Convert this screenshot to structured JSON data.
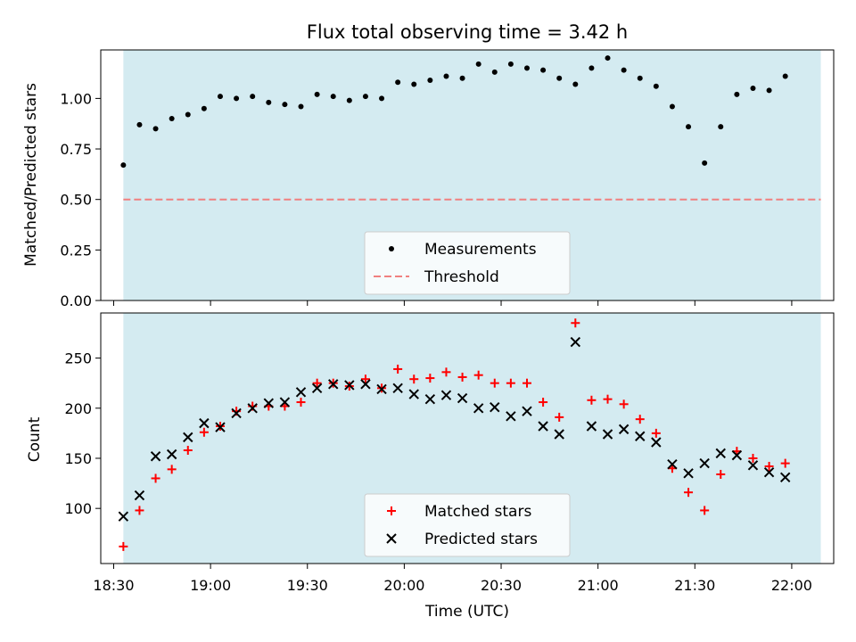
{
  "title": "Flux total observing time = 3.42 h",
  "chart_data": [
    {
      "type": "scatter",
      "ylabel": "Matched/Predicted stars",
      "ylim": [
        0,
        1.24
      ],
      "yticks": [
        0.0,
        0.25,
        0.5,
        0.75,
        1.0
      ],
      "ytick_labels": [
        "0.00",
        "0.25",
        "0.50",
        "0.75",
        "1.00"
      ],
      "shaded_span": [
        "18:33",
        "22:09"
      ],
      "shade_color": "#d4ebf1",
      "legend_position": "lower center",
      "series": [
        {
          "name": "Measurements",
          "marker": "dot",
          "color": "#000000",
          "x": [
            "18:33",
            "18:38",
            "18:43",
            "18:48",
            "18:53",
            "18:58",
            "19:03",
            "19:08",
            "19:13",
            "19:18",
            "19:23",
            "19:28",
            "19:33",
            "19:38",
            "19:43",
            "19:48",
            "19:53",
            "19:58",
            "20:03",
            "20:08",
            "20:13",
            "20:18",
            "20:23",
            "20:28",
            "20:33",
            "20:38",
            "20:43",
            "20:48",
            "20:53",
            "20:58",
            "21:03",
            "21:08",
            "21:13",
            "21:18",
            "21:23",
            "21:28",
            "21:33",
            "21:38",
            "21:43",
            "21:48",
            "21:53",
            "21:58"
          ],
          "y": [
            0.67,
            0.87,
            0.85,
            0.9,
            0.92,
            0.95,
            1.01,
            1.0,
            1.01,
            0.98,
            0.97,
            0.96,
            1.02,
            1.01,
            0.99,
            1.01,
            1.0,
            1.08,
            1.07,
            1.09,
            1.11,
            1.1,
            1.17,
            1.13,
            1.17,
            1.15,
            1.14,
            1.1,
            1.07,
            1.15,
            1.2,
            1.14,
            1.1,
            1.06,
            0.96,
            0.86,
            0.68,
            0.86,
            1.02,
            1.05,
            1.04,
            1.11
          ]
        },
        {
          "name": "Threshold",
          "marker": "dashed-line",
          "color": "#f08080",
          "x": [
            "18:33",
            "22:09"
          ],
          "y": [
            0.5,
            0.5
          ]
        }
      ]
    },
    {
      "type": "scatter",
      "xlabel": "Time (UTC)",
      "ylabel": "Count",
      "ylim": [
        45,
        295
      ],
      "yticks": [
        100,
        150,
        200,
        250
      ],
      "ytick_labels": [
        "100",
        "150",
        "200",
        "250"
      ],
      "xticks": [
        "18:30",
        "19:00",
        "19:30",
        "20:00",
        "20:30",
        "21:00",
        "21:30",
        "22:00"
      ],
      "shaded_span": [
        "18:33",
        "22:09"
      ],
      "shade_color": "#d4ebf1",
      "legend_position": "lower center",
      "series": [
        {
          "name": "Matched stars",
          "marker": "plus",
          "color": "#ff0000",
          "x": [
            "18:33",
            "18:38",
            "18:43",
            "18:48",
            "18:53",
            "18:58",
            "19:03",
            "19:08",
            "19:13",
            "19:18",
            "19:23",
            "19:28",
            "19:33",
            "19:38",
            "19:43",
            "19:48",
            "19:53",
            "19:58",
            "20:03",
            "20:08",
            "20:13",
            "20:18",
            "20:23",
            "20:28",
            "20:33",
            "20:38",
            "20:43",
            "20:48",
            "20:53",
            "20:58",
            "21:03",
            "21:08",
            "21:13",
            "21:18",
            "21:23",
            "21:28",
            "21:33",
            "21:38",
            "21:43",
            "21:48",
            "21:53",
            "21:58"
          ],
          "y": [
            62,
            98,
            130,
            139,
            158,
            176,
            182,
            197,
            202,
            202,
            202,
            206,
            225,
            225,
            222,
            229,
            220,
            239,
            229,
            230,
            236,
            231,
            233,
            225,
            225,
            225,
            206,
            191,
            285,
            208,
            209,
            204,
            189,
            175,
            140,
            116,
            98,
            134,
            157,
            150,
            142,
            145
          ]
        },
        {
          "name": "Predicted stars",
          "marker": "x",
          "color": "#000000",
          "x": [
            "18:33",
            "18:38",
            "18:43",
            "18:48",
            "18:53",
            "18:58",
            "19:03",
            "19:08",
            "19:13",
            "19:18",
            "19:23",
            "19:28",
            "19:33",
            "19:38",
            "19:43",
            "19:48",
            "19:53",
            "19:58",
            "20:03",
            "20:08",
            "20:13",
            "20:18",
            "20:23",
            "20:28",
            "20:33",
            "20:38",
            "20:43",
            "20:48",
            "20:53",
            "20:58",
            "21:03",
            "21:08",
            "21:13",
            "21:18",
            "21:23",
            "21:28",
            "21:33",
            "21:38",
            "21:43",
            "21:48",
            "21:53",
            "21:58"
          ],
          "y": [
            92,
            113,
            152,
            154,
            171,
            185,
            181,
            195,
            200,
            205,
            206,
            216,
            220,
            224,
            223,
            224,
            219,
            220,
            214,
            209,
            213,
            210,
            200,
            201,
            192,
            197,
            182,
            174,
            266,
            182,
            174,
            179,
            172,
            166,
            144,
            135,
            145,
            155,
            153,
            143,
            136,
            131
          ]
        }
      ]
    }
  ]
}
